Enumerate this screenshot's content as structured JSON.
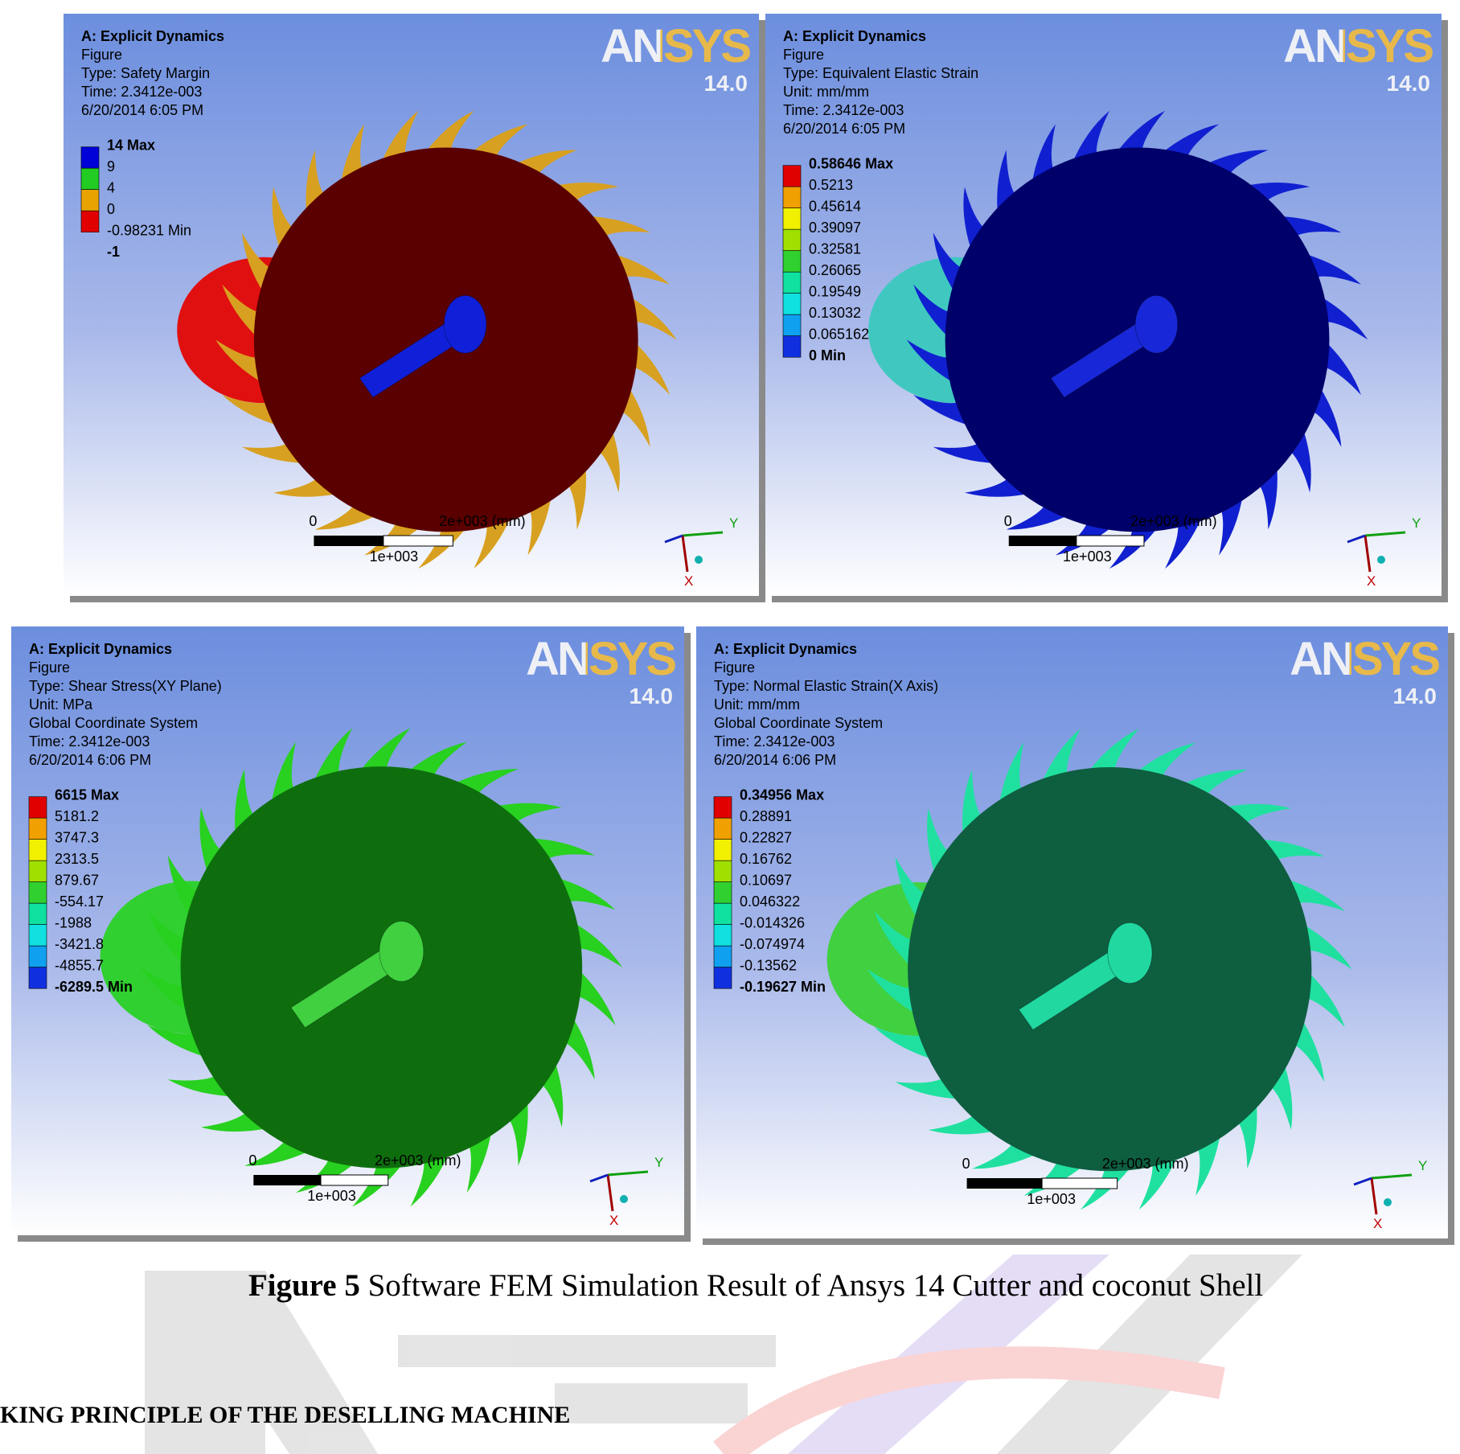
{
  "panels": [
    {
      "title": "A: Explicit Dynamics",
      "lines": [
        "Figure",
        "Type: Safety Margin",
        "Time: 2.3412e-003",
        "6/20/2014 6:05 PM"
      ],
      "legend": [
        "14 Max",
        "9",
        "4",
        "0",
        "-0.98231 Min",
        "-1"
      ],
      "legend_colors": [
        "#0000d8",
        "#22cc22",
        "#e8a300",
        "#e00000"
      ],
      "gear_color": "#5a0000",
      "tooth_color": "#d8a020",
      "shell_color": "#e01010",
      "shaft_color": "#1020d8",
      "logo": "ANSYS",
      "version": "14.0",
      "scale_start": "0",
      "scale_end": "2e+003 (mm)",
      "scale_mid": "1e+003",
      "axis_y": "Y",
      "axis_x": "X"
    },
    {
      "title": "A: Explicit Dynamics",
      "lines": [
        "Figure",
        "Type: Equivalent Elastic Strain",
        "Unit: mm/mm",
        "Time: 2.3412e-003",
        "6/20/2014 6:05 PM"
      ],
      "legend": [
        "0.58646 Max",
        "0.5213",
        "0.45614",
        "0.39097",
        "0.32581",
        "0.26065",
        "0.19549",
        "0.13032",
        "0.065162",
        "0 Min"
      ],
      "legend_colors": [
        "#e00000",
        "#f0a000",
        "#f0f000",
        "#a0e000",
        "#30d030",
        "#10e0a0",
        "#10e0e0",
        "#10a0f0",
        "#1030e0"
      ],
      "gear_color": "#00006a",
      "tooth_color": "#1020d0",
      "shell_color": "#40c8c0",
      "shaft_color": "#1828d8",
      "logo": "ANSYS",
      "version": "14.0",
      "scale_start": "0",
      "scale_end": "2e+003 (mm)",
      "scale_mid": "1e+003",
      "axis_y": "Y",
      "axis_x": "X"
    },
    {
      "title": "A: Explicit Dynamics",
      "lines": [
        "Figure",
        "Type: Shear Stress(XY Plane)",
        "Unit: MPa",
        "Global Coordinate System",
        "Time: 2.3412e-003",
        "6/20/2014 6:06 PM"
      ],
      "legend": [
        "6615 Max",
        "5181.2",
        "3747.3",
        "2313.5",
        "879.67",
        "-554.17",
        "-1988",
        "-3421.8",
        "-4855.7",
        "-6289.5 Min"
      ],
      "legend_colors": [
        "#e00000",
        "#f0a000",
        "#f0f000",
        "#a0e000",
        "#30d030",
        "#10e0a0",
        "#10e0e0",
        "#10a0f0",
        "#1030e0"
      ],
      "gear_color": "#0e6e0e",
      "tooth_color": "#28d020",
      "shell_color": "#30d030",
      "shaft_color": "#40d040",
      "logo": "ANSYS",
      "version": "14.0",
      "scale_start": "0",
      "scale_end": "2e+003 (mm)",
      "scale_mid": "1e+003",
      "axis_y": "Y",
      "axis_x": "X"
    },
    {
      "title": "A: Explicit Dynamics",
      "lines": [
        "Figure",
        "Type: Normal Elastic Strain(X Axis)",
        "Unit: mm/mm",
        "Global Coordinate System",
        "Time: 2.3412e-003",
        "6/20/2014 6:06 PM"
      ],
      "legend": [
        "0.34956 Max",
        "0.28891",
        "0.22827",
        "0.16762",
        "0.10697",
        "0.046322",
        "-0.014326",
        "-0.074974",
        "-0.13562",
        "-0.19627 Min"
      ],
      "legend_colors": [
        "#e00000",
        "#f0a000",
        "#f0f000",
        "#a0e000",
        "#30d030",
        "#10e0a0",
        "#10e0e0",
        "#10a0f0",
        "#1030e0"
      ],
      "gear_color": "#0e5e40",
      "tooth_color": "#20e0a0",
      "shell_color": "#40d040",
      "shaft_color": "#20d8a0",
      "logo": "ANSYS",
      "version": "14.0",
      "scale_start": "0",
      "scale_end": "2e+003 (mm)",
      "scale_mid": "1e+003",
      "axis_y": "Y",
      "axis_x": "X"
    }
  ],
  "caption": {
    "label": "Figure 5",
    "text": "Software FEM Simulation Result of Ansys 14 Cutter and coconut Shell"
  },
  "heading": "KING PRINCIPLE OF THE  DESELLING MACHINE"
}
